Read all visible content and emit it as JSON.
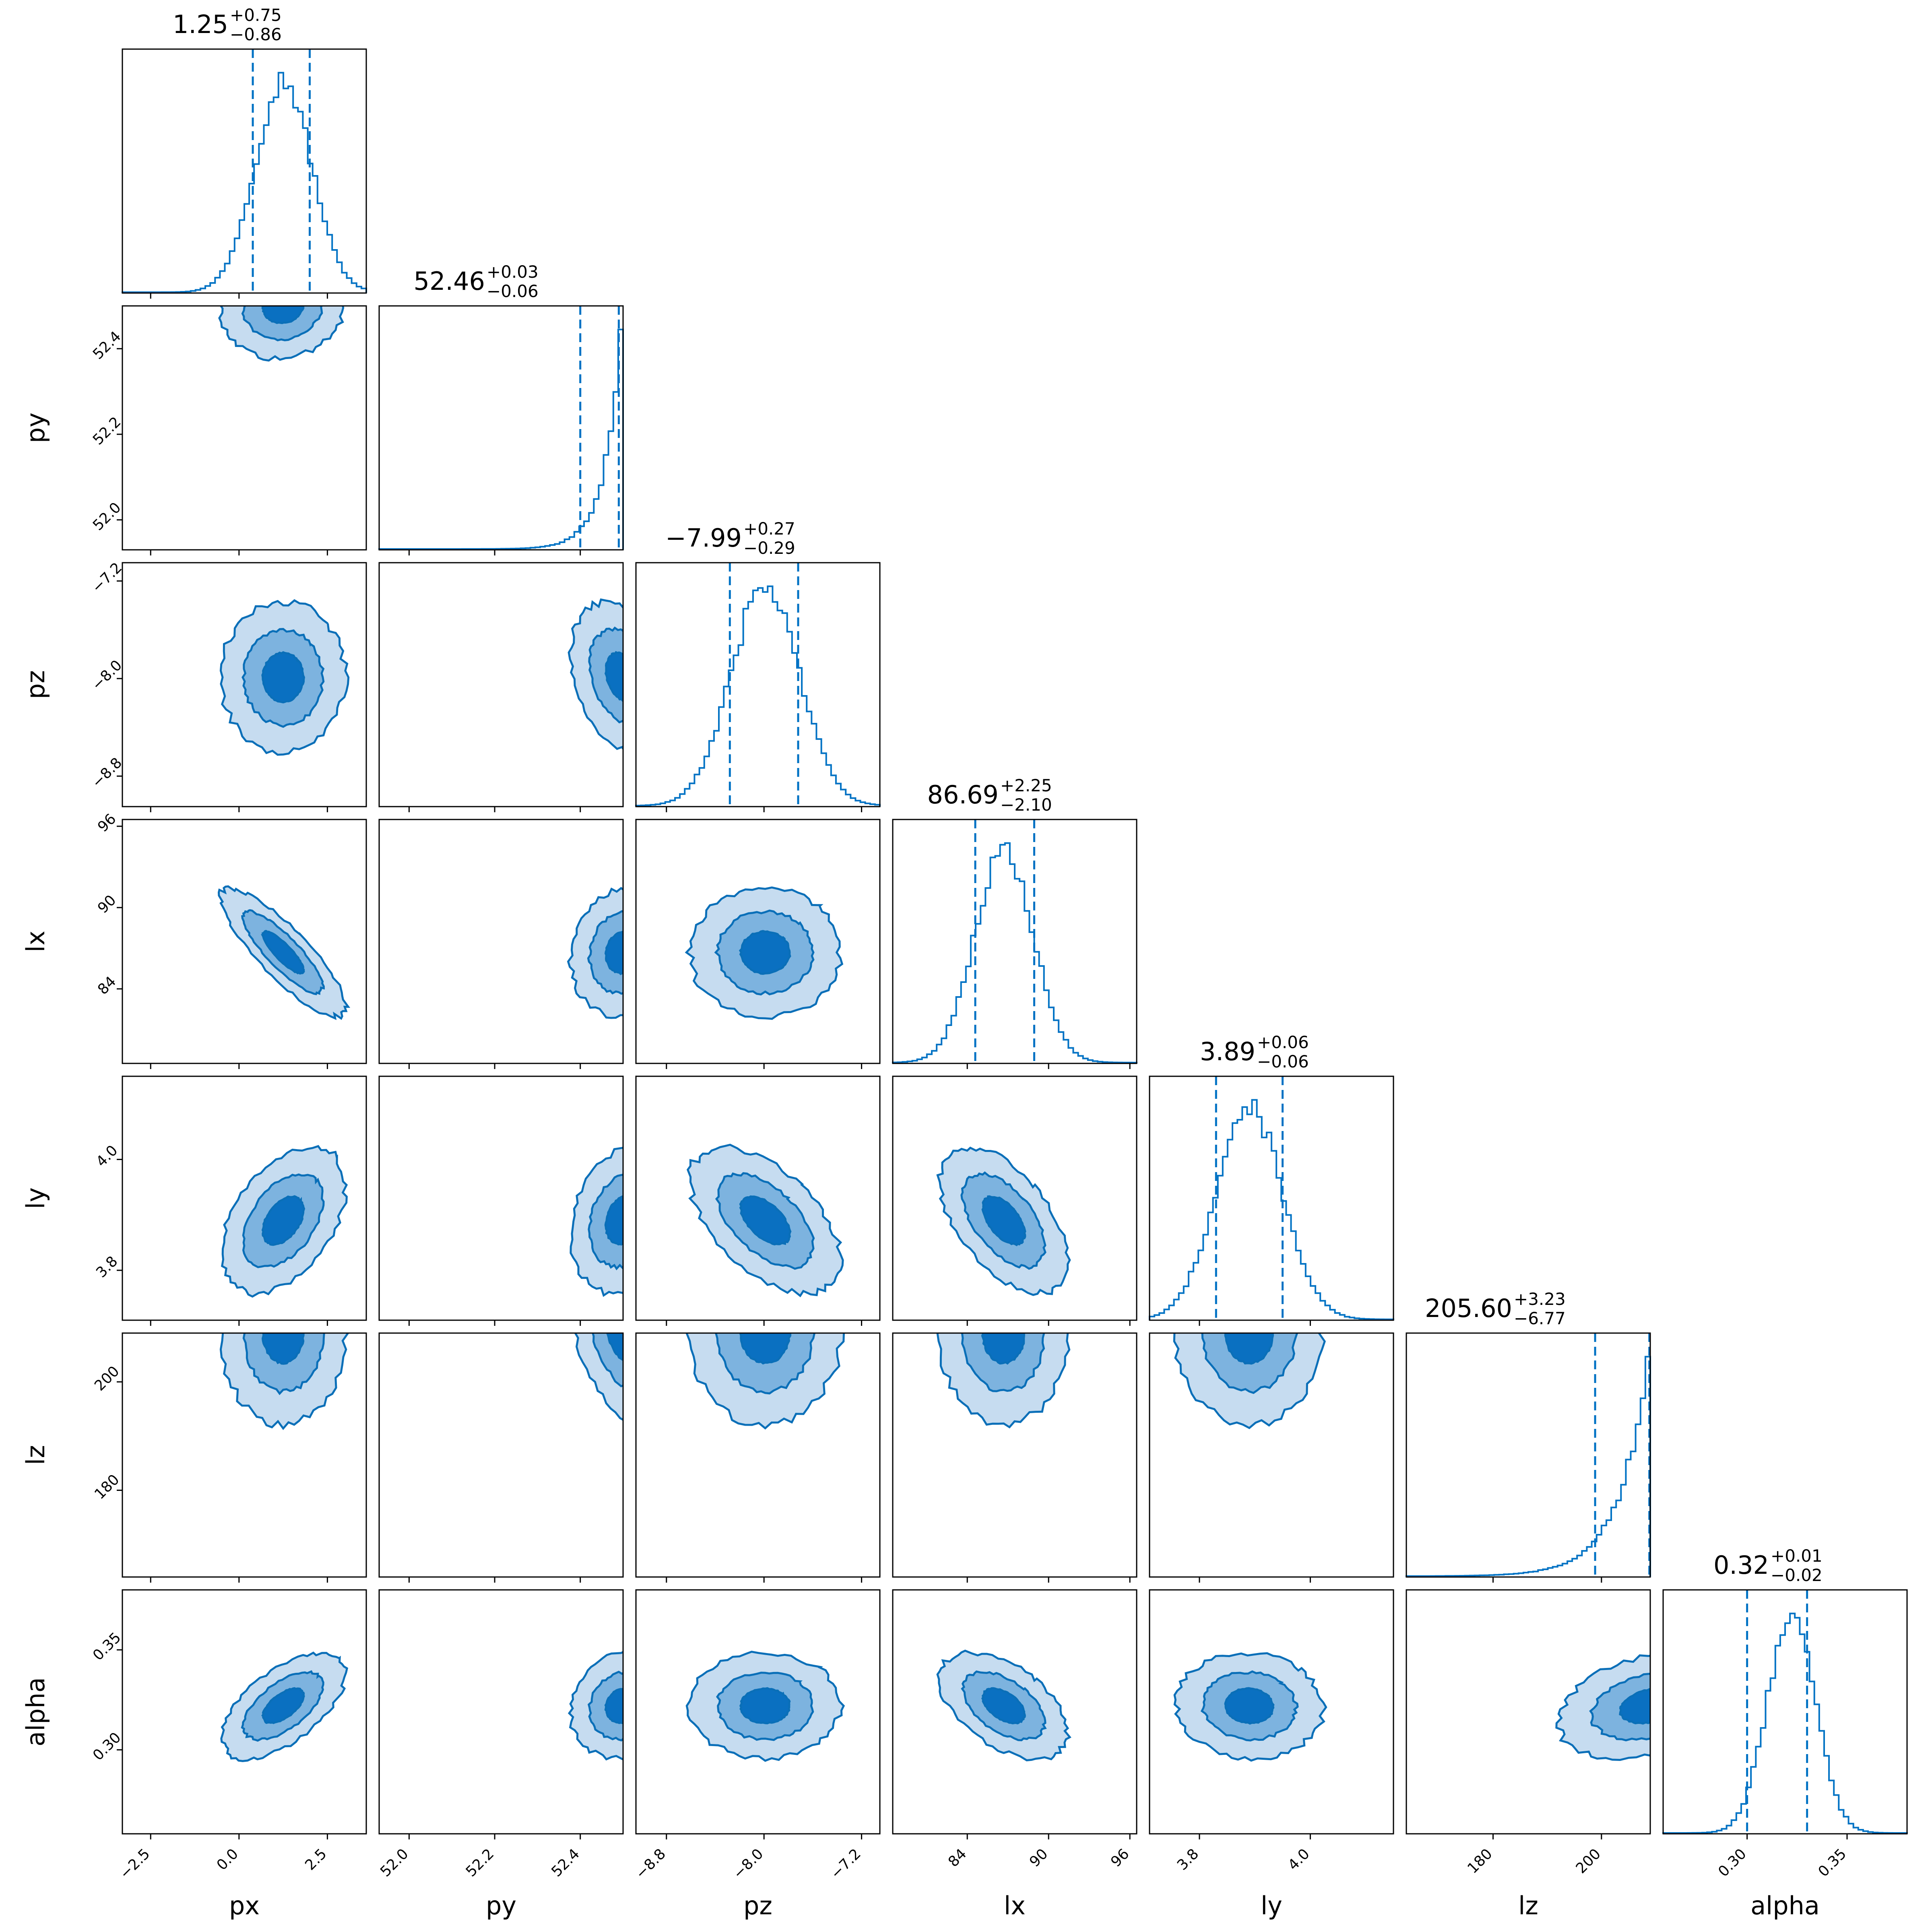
{
  "chart_data": {
    "type": "corner",
    "parameters": [
      "px",
      "py",
      "pz",
      "lx",
      "ly",
      "lz",
      "alpha"
    ],
    "ranges": {
      "px": [
        -3.3,
        3.6
      ],
      "py": [
        51.93,
        52.5
      ],
      "pz": [
        -9.05,
        -7.05
      ],
      "lx": [
        78.5,
        96.5
      ],
      "ly": [
        3.71,
        4.15
      ],
      "lz": [
        164.0,
        209.0
      ],
      "alpha": [
        0.258,
        0.38
      ]
    },
    "ticks": {
      "px": [
        "−2.5",
        "0.0",
        "2.5"
      ],
      "py": [
        "52.0",
        "52.2",
        "52.4"
      ],
      "pz": [
        "−8.8",
        "−8.0",
        "−7.2"
      ],
      "lx": [
        "84",
        "90",
        "96"
      ],
      "ly": [
        "3.8",
        "4.0"
      ],
      "lz": [
        "180",
        "200"
      ],
      "alpha": [
        "0.30",
        "0.35"
      ]
    },
    "titles": [
      {
        "param": "px",
        "median": "1.25",
        "plus": "+0.75",
        "minus": "−0.86"
      },
      {
        "param": "py",
        "median": "52.46",
        "plus": "+0.03",
        "minus": "−0.06"
      },
      {
        "param": "pz",
        "median": "−7.99",
        "plus": "+0.27",
        "minus": "−0.29"
      },
      {
        "param": "lx",
        "median": "86.69",
        "plus": "+2.25",
        "minus": "−2.10"
      },
      {
        "param": "ly",
        "median": "3.89",
        "plus": "+0.06",
        "minus": "−0.06"
      },
      {
        "param": "lz",
        "median": "205.60",
        "plus": "+3.23",
        "minus": "−6.77"
      },
      {
        "param": "alpha",
        "median": "0.32",
        "plus": "+0.01",
        "minus": "−0.02"
      }
    ],
    "marginals": {
      "px": {
        "kind": "normal",
        "center": 1.25,
        "width": 0.8
      },
      "py": {
        "kind": "tail",
        "edge": 52.5,
        "scale": 0.04
      },
      "pz": {
        "kind": "normal",
        "center": -7.99,
        "width": 0.28
      },
      "lx": {
        "kind": "normal",
        "center": 86.69,
        "width": 2.15
      },
      "ly": {
        "kind": "normal",
        "center": 3.89,
        "width": 0.06
      },
      "lz": {
        "kind": "tail",
        "edge": 209.0,
        "scale": 5.5
      },
      "alpha": {
        "kind": "normal",
        "center": 0.322,
        "width": 0.012
      }
    },
    "quantile_lines": {
      "px": [
        0.39,
        2.0
      ],
      "py": [
        52.4,
        52.49
      ],
      "pz": [
        -8.28,
        -7.72
      ],
      "lx": [
        84.59,
        88.94
      ],
      "ly": [
        3.83,
        3.95
      ],
      "lz": [
        198.83,
        208.83
      ],
      "alpha": [
        0.3,
        0.33
      ]
    },
    "contour_levels": [
      "0.5σ",
      "1σ",
      "1.5σ"
    ],
    "colors": {
      "line": "#0072C4",
      "contour_outer": "#c6dcf0",
      "contour_mid": "#7db3df",
      "contour_inner": "#0a70c1"
    },
    "axis_labels": [
      "px",
      "py",
      "pz",
      "lx",
      "ly",
      "lz",
      "alpha"
    ]
  }
}
